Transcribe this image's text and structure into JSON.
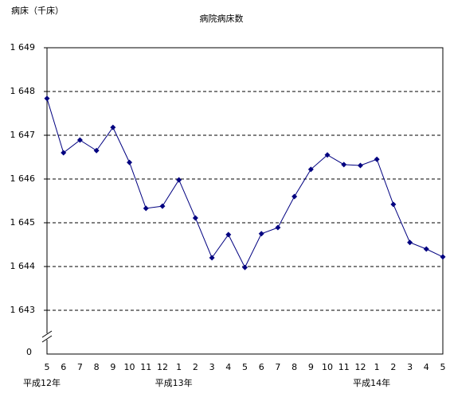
{
  "chart_data": {
    "type": "line",
    "title": "病院病床数",
    "y_label": "病床（千床）",
    "categories": [
      "5",
      "6",
      "7",
      "8",
      "9",
      "10",
      "11",
      "12",
      "1",
      "2",
      "3",
      "4",
      "5",
      "6",
      "7",
      "8",
      "9",
      "10",
      "11",
      "12",
      "1",
      "2",
      "3",
      "4",
      "5"
    ],
    "x_groups": [
      {
        "label": "平成12年",
        "start": 0
      },
      {
        "label": "平成13年",
        "start": 8
      },
      {
        "label": "平成14年",
        "start": 20
      }
    ],
    "series": [
      {
        "name": "病院病床数",
        "color": "#000080",
        "values": [
          1647.84,
          1646.6,
          1646.89,
          1646.65,
          1647.18,
          1646.38,
          1645.33,
          1645.38,
          1645.98,
          1645.11,
          1644.2,
          1644.73,
          1643.98,
          1644.75,
          1644.89,
          1645.6,
          1646.22,
          1646.55,
          1646.33,
          1646.31,
          1646.45,
          1645.42,
          1644.55,
          1644.4,
          1644.22
        ]
      }
    ],
    "ylim": [
      1642,
      1649
    ],
    "yticks": [
      {
        "value": 1643,
        "label": "1 643"
      },
      {
        "value": 1644,
        "label": "1 644"
      },
      {
        "value": 1645,
        "label": "1 645"
      },
      {
        "value": 1646,
        "label": "1 646"
      },
      {
        "value": 1647,
        "label": "1 647"
      },
      {
        "value": 1648,
        "label": "1 648"
      },
      {
        "value": 1649,
        "label": "1 649"
      }
    ],
    "y_origin_label": 0,
    "grid": true
  }
}
